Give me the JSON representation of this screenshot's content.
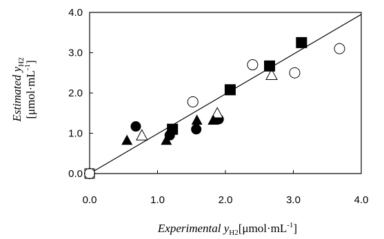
{
  "chart_data": {
    "type": "scatter",
    "title": "",
    "xlabel": {
      "italic": "Experimental ",
      "var": "y",
      "sub": "H2",
      "unit": "[μmol·mL",
      "sup": "-1",
      "close": "]"
    },
    "ylabel": {
      "line1": {
        "italic": "Estimated ",
        "var": "y",
        "sub": "H2"
      },
      "line2": {
        "unit": "[μmol·mL",
        "sup": "-1",
        "close": "]"
      }
    },
    "xlim": [
      0.0,
      4.0
    ],
    "ylim": [
      0.0,
      4.0
    ],
    "xticks": [
      "0.0",
      "1.0",
      "2.0",
      "3.0",
      "4.0"
    ],
    "yticks": [
      "0.0",
      "1.0",
      "2.0",
      "3.0",
      "4.0"
    ],
    "grid": false,
    "reference_line": {
      "from": [
        0.0,
        0.0
      ],
      "to": [
        4.0,
        3.95
      ]
    },
    "series": [
      {
        "marker": "open-circle",
        "points": [
          [
            0.0,
            0.0
          ],
          [
            1.52,
            1.78
          ],
          [
            2.4,
            2.7
          ],
          [
            3.02,
            2.5
          ],
          [
            3.68,
            3.1
          ]
        ]
      },
      {
        "marker": "filled-circle",
        "points": [
          [
            0.68,
            1.17
          ],
          [
            1.18,
            0.95
          ],
          [
            1.57,
            1.1
          ],
          [
            1.9,
            1.35
          ]
        ]
      },
      {
        "marker": "open-triangle",
        "points": [
          [
            0.77,
            0.95
          ],
          [
            1.88,
            1.5
          ],
          [
            2.68,
            2.45
          ]
        ]
      },
      {
        "marker": "filled-triangle",
        "points": [
          [
            0.55,
            0.83
          ],
          [
            1.13,
            0.83
          ],
          [
            1.58,
            1.33
          ],
          [
            1.82,
            1.33
          ]
        ]
      },
      {
        "marker": "filled-square",
        "points": [
          [
            1.22,
            1.1
          ],
          [
            2.07,
            2.08
          ],
          [
            2.65,
            2.67
          ],
          [
            3.12,
            3.25
          ]
        ]
      },
      {
        "marker": "open-square",
        "points": [
          [
            0.0,
            0.0
          ]
        ]
      }
    ]
  }
}
